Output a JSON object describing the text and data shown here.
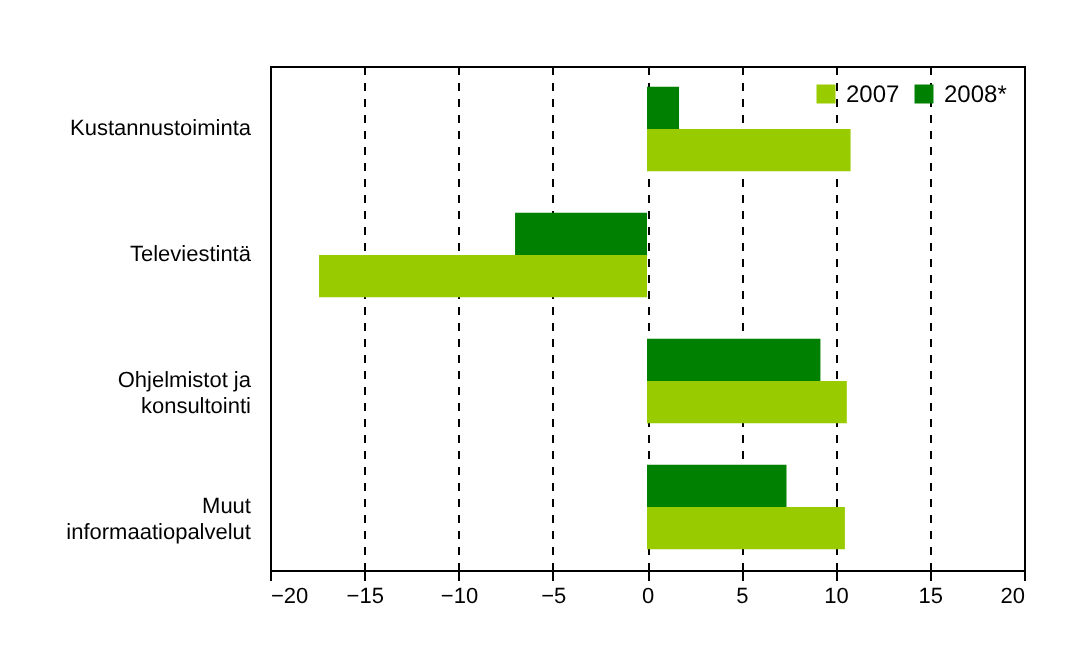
{
  "chart_data": {
    "type": "bar",
    "orientation": "horizontal",
    "categories": [
      "Kustannustoiminta",
      "Televiestintä",
      "Ohjelmistot ja konsultointi",
      "Muut informaatiopalvelut"
    ],
    "series": [
      {
        "name": "2007",
        "color": "#99cc00",
        "values": [
          10.8,
          -17.4,
          10.6,
          10.5
        ]
      },
      {
        "name": "2008*",
        "color": "#008000",
        "values": [
          1.7,
          -7.0,
          9.2,
          7.4
        ]
      }
    ],
    "xlim": [
      -20,
      20
    ],
    "xticks": [
      -20,
      -15,
      -10,
      -5,
      0,
      5,
      10,
      15,
      20
    ],
    "grid": "x",
    "legend": "top right"
  }
}
